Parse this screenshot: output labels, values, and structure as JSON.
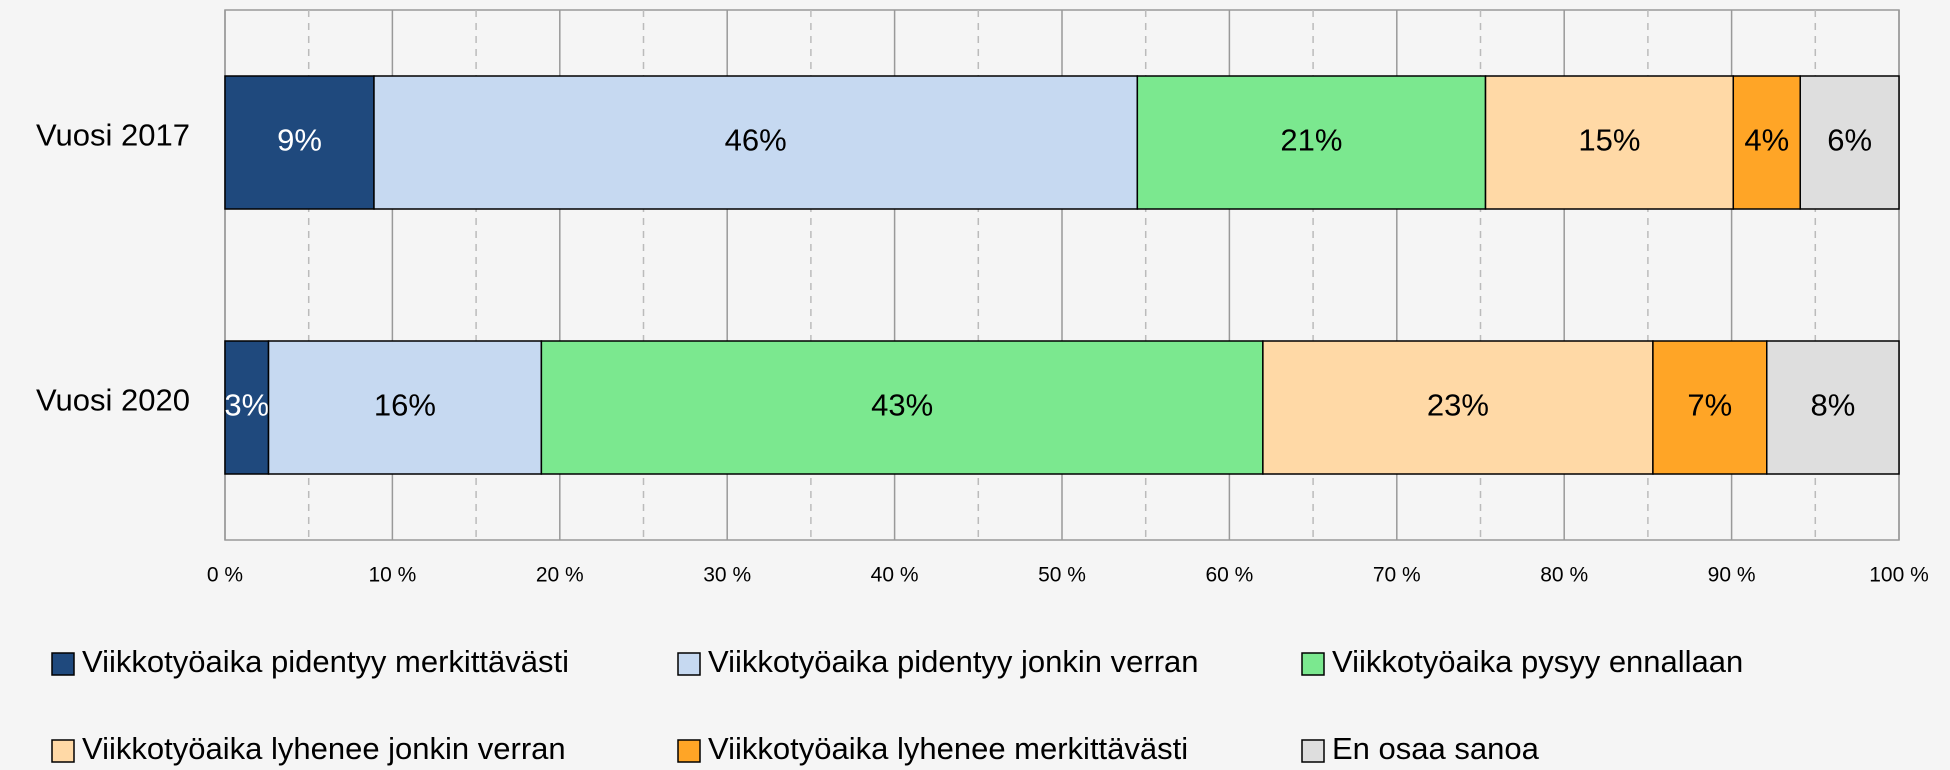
{
  "chart_data": {
    "type": "stacked_barh",
    "categories": [
      "Vuosi 2017",
      "Vuosi 2020"
    ],
    "series": [
      {
        "name": "Viikkotyöaika pidentyy merkittävästi",
        "color": "#1f497d",
        "label_color": "#ffffff",
        "values": [
          8.9,
          2.6
        ],
        "value_labels": [
          "9%",
          "3%"
        ]
      },
      {
        "name": "Viikkotyöaika pidentyy jonkin verran",
        "color": "#c6d9f1",
        "label_color": "#000000",
        "values": [
          45.6,
          16.3
        ],
        "value_labels": [
          "46%",
          "16%"
        ]
      },
      {
        "name": "Viikkotyöaika pysyy ennallaan",
        "color": "#7be88f",
        "label_color": "#000000",
        "values": [
          20.8,
          43.1
        ],
        "value_labels": [
          "21%",
          "43%"
        ]
      },
      {
        "name": "Viikkotyöaika lyhenee jonkin verran",
        "color": "#ffd9a6",
        "label_color": "#000000",
        "values": [
          14.8,
          23.3
        ],
        "value_labels": [
          "15%",
          "23%"
        ]
      },
      {
        "name": "Viikkotyöaika lyhenee merkittävästi",
        "color": "#ffa526",
        "label_color": "#000000",
        "values": [
          4.0,
          6.8
        ],
        "value_labels": [
          "4%",
          "7%"
        ]
      },
      {
        "name": "En osaa sanoa",
        "color": "#dedede",
        "label_color": "#000000",
        "values": [
          5.9,
          7.9
        ],
        "value_labels": [
          "6%",
          "8%"
        ]
      }
    ],
    "xlim": [
      0,
      100
    ],
    "xticks": [
      {
        "value": 0,
        "label": "0 %"
      },
      {
        "value": 10,
        "label": "10 %"
      },
      {
        "value": 20,
        "label": "20 %"
      },
      {
        "value": 30,
        "label": "30 %"
      },
      {
        "value": 40,
        "label": "40 %"
      },
      {
        "value": 50,
        "label": "50 %"
      },
      {
        "value": 60,
        "label": "60 %"
      },
      {
        "value": 70,
        "label": "70 %"
      },
      {
        "value": 80,
        "label": "80 %"
      },
      {
        "value": 90,
        "label": "90 %"
      },
      {
        "value": 100,
        "label": "100 %"
      }
    ],
    "xminorticks": [
      5,
      15,
      25,
      35,
      45,
      55,
      65,
      75,
      85,
      95
    ],
    "grid": true,
    "legend": "bottom"
  }
}
